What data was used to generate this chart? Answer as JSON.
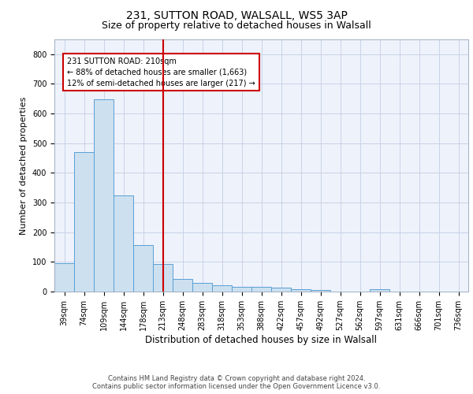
{
  "title1": "231, SUTTON ROAD, WALSALL, WS5 3AP",
  "title2": "Size of property relative to detached houses in Walsall",
  "xlabel": "Distribution of detached houses by size in Walsall",
  "ylabel": "Number of detached properties",
  "categories": [
    "39sqm",
    "74sqm",
    "109sqm",
    "144sqm",
    "178sqm",
    "213sqm",
    "248sqm",
    "283sqm",
    "318sqm",
    "353sqm",
    "388sqm",
    "422sqm",
    "457sqm",
    "492sqm",
    "527sqm",
    "562sqm",
    "597sqm",
    "631sqm",
    "666sqm",
    "701sqm",
    "736sqm"
  ],
  "values": [
    95,
    470,
    648,
    323,
    158,
    93,
    43,
    28,
    20,
    17,
    15,
    14,
    8,
    5,
    0,
    0,
    7,
    0,
    0,
    0,
    0
  ],
  "bar_color": "#cce0f0",
  "bar_edge_color": "#5a9fd4",
  "highlight_index": 5,
  "highlight_line_color": "#cc0000",
  "annotation_text": "231 SUTTON ROAD: 210sqm\n← 88% of detached houses are smaller (1,663)\n12% of semi-detached houses are larger (217) →",
  "annotation_box_color": "white",
  "annotation_box_edge_color": "#cc0000",
  "ylim": [
    0,
    850
  ],
  "yticks": [
    0,
    100,
    200,
    300,
    400,
    500,
    600,
    700,
    800
  ],
  "grid_color": "#c8d4e8",
  "background_color": "#eef2fb",
  "footer_text": "Contains HM Land Registry data © Crown copyright and database right 2024.\nContains public sector information licensed under the Open Government Licence v3.0.",
  "title1_fontsize": 10,
  "title2_fontsize": 9,
  "xlabel_fontsize": 8.5,
  "ylabel_fontsize": 8,
  "tick_fontsize": 7,
  "annotation_fontsize": 7,
  "footer_fontsize": 6
}
